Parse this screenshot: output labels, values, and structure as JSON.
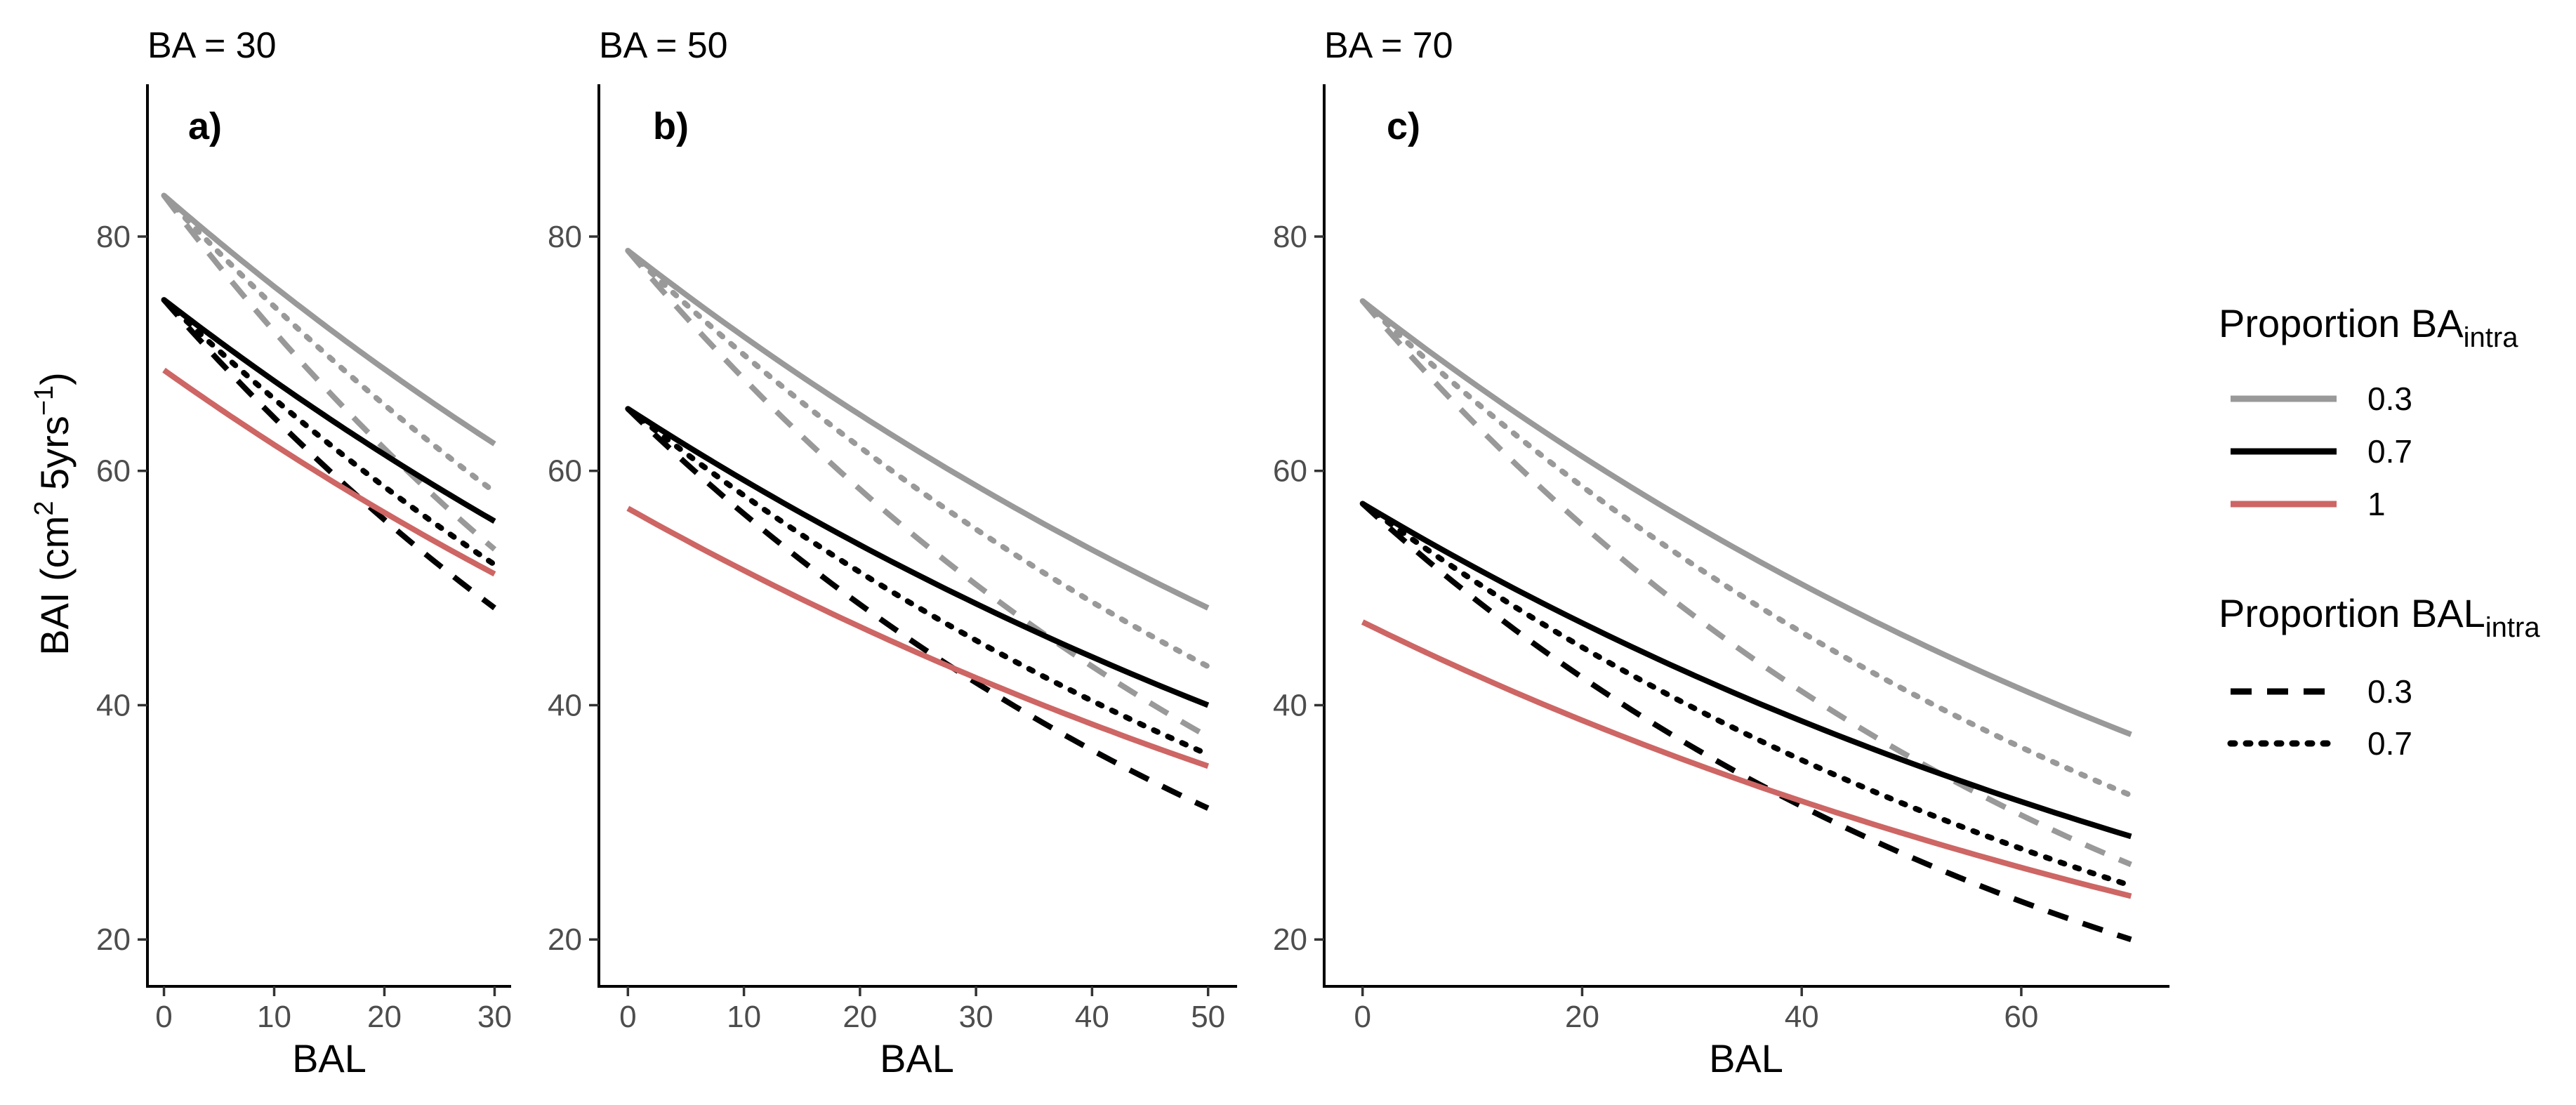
{
  "chart_data": {
    "type": "line",
    "ylabel": "BAI (cm² 5yrs⁻¹)",
    "ylabel_parts": {
      "main": "BAI (cm",
      "sup1": "2",
      "mid": " 5yrs",
      "sup2": "−1",
      "end": ")"
    },
    "ylim": [
      16,
      93
    ],
    "yticks": [
      20,
      40,
      60,
      80
    ],
    "legend": {
      "position": "right",
      "color_title": {
        "main": "Proportion BA",
        "sub": "intra"
      },
      "color_entries": [
        {
          "label": "0.3",
          "color": "#999999"
        },
        {
          "label": "0.7",
          "color": "#000000"
        },
        {
          "label": "1",
          "color": "#cd6664"
        }
      ],
      "linetype_title": {
        "main": "Proportion BAL",
        "sub": "intra"
      },
      "linetype_entries": [
        {
          "label": "0.3",
          "dash": "dashed"
        },
        {
          "label": "0.7",
          "dash": "dotted"
        }
      ]
    },
    "panels": [
      {
        "title": "BA = 30",
        "tag": "a)",
        "xlabel": "BAL",
        "xlim": [
          -1.5,
          31.5
        ],
        "xticks": [
          0,
          10,
          20,
          30
        ],
        "series": [
          {
            "color": "#999999",
            "dash": "solid",
            "start": 83.5,
            "end": 62.3
          },
          {
            "color": "#999999",
            "dash": "dotted",
            "start": 83.5,
            "end": 58.2
          },
          {
            "color": "#999999",
            "dash": "dashed",
            "start": 83.5,
            "end": 53.3
          },
          {
            "color": "#000000",
            "dash": "solid",
            "start": 74.6,
            "end": 55.7
          },
          {
            "color": "#000000",
            "dash": "dotted",
            "start": 74.6,
            "end": 52.0
          },
          {
            "color": "#000000",
            "dash": "dashed",
            "start": 74.6,
            "end": 48.3
          },
          {
            "color": "#cd6664",
            "dash": "solid",
            "start": 68.6,
            "end": 51.2
          }
        ]
      },
      {
        "title": "BA = 50",
        "tag": "b)",
        "xlabel": "BAL",
        "xlim": [
          -2.5,
          52.5
        ],
        "xticks": [
          0,
          10,
          20,
          30,
          40,
          50
        ],
        "series": [
          {
            "color": "#999999",
            "dash": "solid",
            "start": 78.8,
            "end": 48.3
          },
          {
            "color": "#999999",
            "dash": "dotted",
            "start": 78.8,
            "end": 43.3
          },
          {
            "color": "#999999",
            "dash": "dashed",
            "start": 78.8,
            "end": 37.3
          },
          {
            "color": "#000000",
            "dash": "solid",
            "start": 65.3,
            "end": 40.0
          },
          {
            "color": "#000000",
            "dash": "dotted",
            "start": 65.3,
            "end": 35.8
          },
          {
            "color": "#000000",
            "dash": "dashed",
            "start": 65.3,
            "end": 31.2
          },
          {
            "color": "#cd6664",
            "dash": "solid",
            "start": 56.8,
            "end": 34.8
          }
        ]
      },
      {
        "title": "BA = 70",
        "tag": "c)",
        "xlabel": "BAL",
        "xlim": [
          -3.5,
          73.5
        ],
        "xticks": [
          0,
          20,
          40,
          60
        ],
        "series": [
          {
            "color": "#999999",
            "dash": "solid",
            "start": 74.5,
            "end": 37.5
          },
          {
            "color": "#999999",
            "dash": "dotted",
            "start": 74.5,
            "end": 32.3
          },
          {
            "color": "#999999",
            "dash": "dashed",
            "start": 74.5,
            "end": 26.4
          },
          {
            "color": "#000000",
            "dash": "solid",
            "start": 57.2,
            "end": 28.8
          },
          {
            "color": "#000000",
            "dash": "dotted",
            "start": 57.2,
            "end": 24.6
          },
          {
            "color": "#000000",
            "dash": "dashed",
            "start": 57.2,
            "end": 20.0
          },
          {
            "color": "#cd6664",
            "dash": "solid",
            "start": 47.1,
            "end": 23.7
          }
        ]
      }
    ]
  }
}
